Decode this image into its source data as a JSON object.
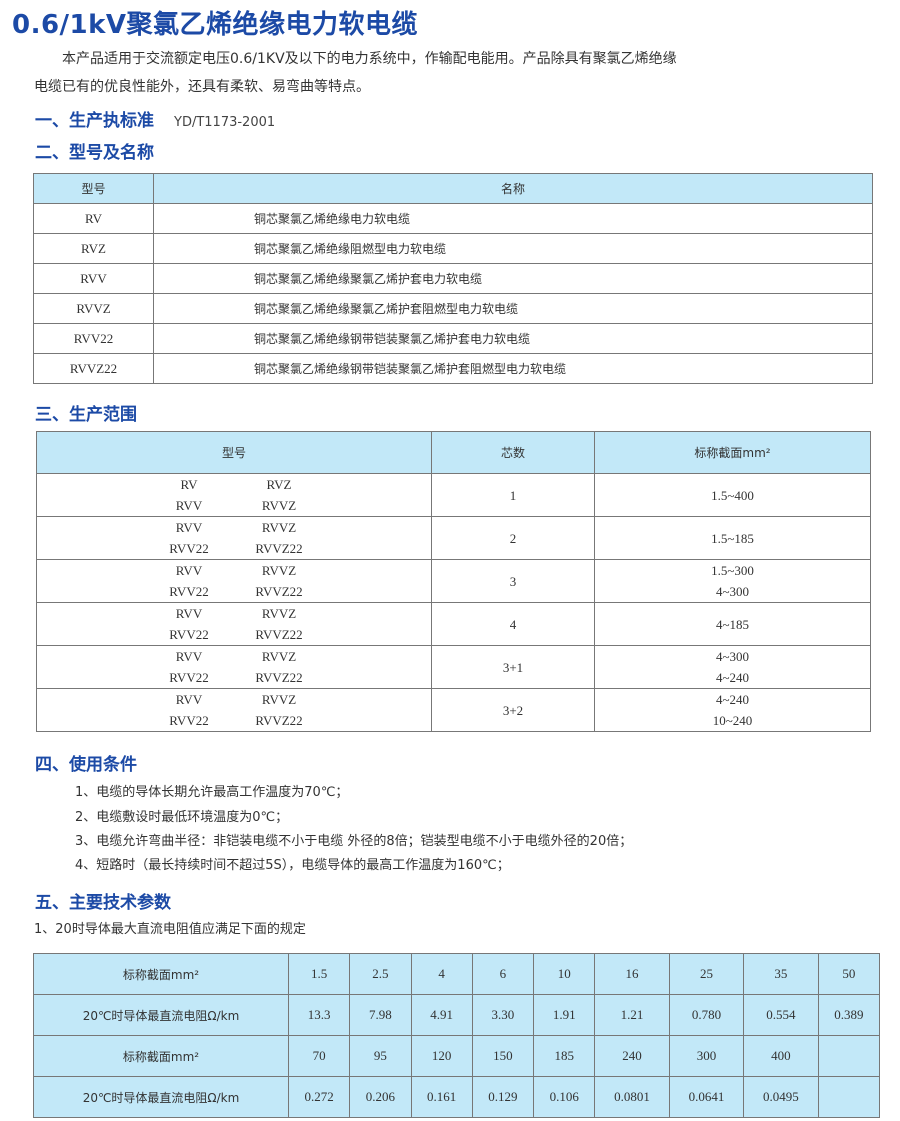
{
  "title": "0.6/1kV聚氯乙烯绝缘电力软电缆",
  "intro": [
    "本产品适用于交流额定电压0.6/1KV及以下的电力系统中，作输配电能用。产品除具有聚氯乙烯绝缘",
    "电缆已有的优良性能外，还具有柔软、易弯曲等特点。"
  ],
  "s1": {
    "title": "一、生产执标准",
    "standard": "YD/T1173-2001"
  },
  "s2": {
    "title": "二、型号及名称",
    "headers": [
      "型号",
      "名称"
    ],
    "rows": [
      [
        "RV",
        "铜芯聚氯乙烯绝缘电力软电缆"
      ],
      [
        "RVZ",
        "铜芯聚氯乙烯绝缘阻燃型电力软电缆"
      ],
      [
        "RVV",
        "铜芯聚氯乙烯绝缘聚氯乙烯护套电力软电缆"
      ],
      [
        "RVVZ",
        "铜芯聚氯乙烯绝缘聚氯乙烯护套阻燃型电力软电缆"
      ],
      [
        "RVV22",
        "铜芯聚氯乙烯绝缘钢带铠装聚氯乙烯护套电力软电缆"
      ],
      [
        "RVVZ22",
        "铜芯聚氯乙烯绝缘钢带铠装聚氯乙烯护套阻燃型电力软电缆"
      ]
    ]
  },
  "s3": {
    "title": "三、生产范围",
    "headers": [
      "型号",
      "芯数",
      "标称截面mm²"
    ],
    "rows": [
      {
        "models": [
          [
            "RV",
            "RVZ"
          ],
          [
            "RVV",
            "RVVZ"
          ]
        ],
        "cores": "1",
        "sections": [
          "1.5~400"
        ]
      },
      {
        "models": [
          [
            "RVV",
            "RVVZ"
          ],
          [
            "RVV22",
            "RVVZ22"
          ]
        ],
        "cores": "2",
        "sections": [
          "1.5~185"
        ]
      },
      {
        "models": [
          [
            "RVV",
            "RVVZ"
          ],
          [
            "RVV22",
            "RVVZ22"
          ]
        ],
        "cores": "3",
        "sections": [
          "1.5~300",
          "4~300"
        ]
      },
      {
        "models": [
          [
            "RVV",
            "RVVZ"
          ],
          [
            "RVV22",
            "RVVZ22"
          ]
        ],
        "cores": "4",
        "sections": [
          "4~185"
        ]
      },
      {
        "models": [
          [
            "RVV",
            "RVVZ"
          ],
          [
            "RVV22",
            "RVVZ22"
          ]
        ],
        "cores": "3+1",
        "sections": [
          "4~300",
          "4~240"
        ]
      },
      {
        "models": [
          [
            "RVV",
            "RVVZ"
          ],
          [
            "RVV22",
            "RVVZ22"
          ]
        ],
        "cores": "3+2",
        "sections": [
          "4~240",
          "10~240"
        ]
      }
    ]
  },
  "s4": {
    "title": "四、使用条件",
    "items": [
      "1、电缆的导体长期允许最高工作温度为70℃；",
      "2、电缆敷设时最低环境温度为0℃；",
      "3、电缆允许弯曲半径：非铠装电缆不小于电缆 外径的8倍；铠装型电缆不小于电缆外径的20倍；",
      "4、短路时（最长持续时间不超过5S），电缆导体的最高工作温度为160℃；"
    ]
  },
  "s5": {
    "title": "五、主要技术参数",
    "sub": "1、20时导体最大直流电阻值应满足下面的规定",
    "rows": [
      {
        "label": "标称截面mm²",
        "values": [
          "1.5",
          "2.5",
          "4",
          "6",
          "10",
          "16",
          "25",
          "35",
          "50"
        ]
      },
      {
        "label": "20℃时导体最直流电阻Ω/km",
        "values": [
          "13.3",
          "7.98",
          "4.91",
          "3.30",
          "1.91",
          "1.21",
          "0.780",
          "0.554",
          "0.389"
        ]
      },
      {
        "label": "标称截面mm²",
        "values": [
          "70",
          "95",
          "120",
          "150",
          "185",
          "240",
          "300",
          "400",
          ""
        ]
      },
      {
        "label": "20℃时导体最直流电阻Ω/km",
        "values": [
          "0.272",
          "0.206",
          "0.161",
          "0.129",
          "0.106",
          "0.0801",
          "0.0641",
          "0.0495",
          ""
        ]
      }
    ]
  }
}
